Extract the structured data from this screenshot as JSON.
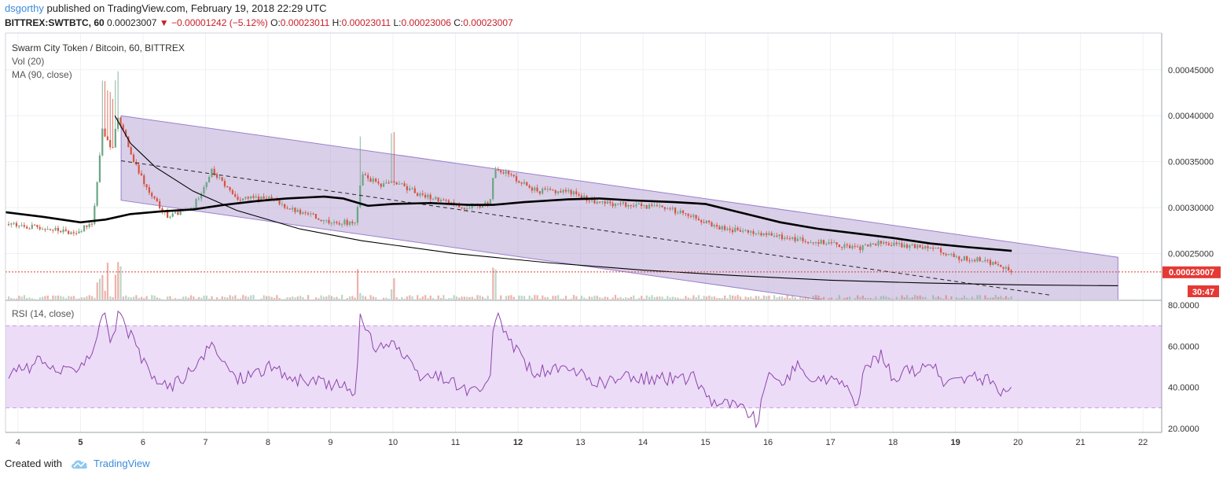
{
  "header": {
    "user": "dsgorthy",
    "published_text": "published on TradingView.com, February 19, 2018 22:29 UTC",
    "symbol": "BITTREX:SWTBTC, 60",
    "last": "0.00023007",
    "change": "−0.00001242 (−5.12%)",
    "open_label": "O:",
    "open": "0.00023011",
    "high_label": "H:",
    "high": "0.00023011",
    "low_label": "L:",
    "low": "0.00023006",
    "close_label": "C:",
    "close": "0.00023007"
  },
  "legend": {
    "title": "Swarm City Token / Bitcoin, 60, BITTREX",
    "vol": "Vol (20)",
    "ma": "MA (90, close)",
    "rsi": "RSI (14, close)"
  },
  "price_badge": "0.00023007",
  "countdown_badge": "30:47",
  "footer": {
    "created": "Created with",
    "brand": "TradingView"
  },
  "colors": {
    "up": "#6ba583",
    "down": "#d75442",
    "channel": "#b9a8d6",
    "rsi_line": "#8e44ad",
    "rsi_band": "#ecdcf7",
    "badge": "#e53935"
  },
  "chart_data": [
    {
      "type": "candlestick",
      "title": "Swarm City Token / Bitcoin, 60, BITTREX",
      "x_ticks": [
        "4",
        "5",
        "6",
        "7",
        "8",
        "9",
        "10",
        "11",
        "12",
        "13",
        "14",
        "15",
        "16",
        "17",
        "18",
        "19",
        "20",
        "21",
        "22"
      ],
      "x_tick_bold": [
        "5",
        "12",
        "19"
      ],
      "y_ticks": [
        "0.00045000",
        "0.00040000",
        "0.00035000",
        "0.00030000",
        "0.00025000"
      ],
      "y_tick_values": [
        0.00045,
        0.0004,
        0.00035,
        0.0003,
        0.00025
      ],
      "ylim": [
        0.0002,
        0.00049
      ],
      "xlim": [
        3.8,
        22.3
      ],
      "close_anchors": [
        {
          "x": 3.85,
          "y": 0.000282
        },
        {
          "x": 4.4,
          "y": 0.000278
        },
        {
          "x": 4.9,
          "y": 0.000272
        },
        {
          "x": 5.2,
          "y": 0.000285
        },
        {
          "x": 5.35,
          "y": 0.000385
        },
        {
          "x": 5.5,
          "y": 0.00036
        },
        {
          "x": 5.6,
          "y": 0.0004
        },
        {
          "x": 5.85,
          "y": 0.00035
        },
        {
          "x": 6.1,
          "y": 0.000315
        },
        {
          "x": 6.4,
          "y": 0.00029
        },
        {
          "x": 6.8,
          "y": 0.0003
        },
        {
          "x": 7.1,
          "y": 0.00034
        },
        {
          "x": 7.5,
          "y": 0.00031
        },
        {
          "x": 8.0,
          "y": 0.00031
        },
        {
          "x": 8.5,
          "y": 0.000295
        },
        {
          "x": 9.0,
          "y": 0.000285
        },
        {
          "x": 9.4,
          "y": 0.000283
        },
        {
          "x": 9.5,
          "y": 0.000335
        },
        {
          "x": 9.8,
          "y": 0.000325
        },
        {
          "x": 10.0,
          "y": 0.00033
        },
        {
          "x": 10.4,
          "y": 0.000315
        },
        {
          "x": 10.8,
          "y": 0.000308
        },
        {
          "x": 11.2,
          "y": 0.000298
        },
        {
          "x": 11.55,
          "y": 0.000305
        },
        {
          "x": 11.62,
          "y": 0.000345
        },
        {
          "x": 12.0,
          "y": 0.00033
        },
        {
          "x": 12.3,
          "y": 0.000318
        },
        {
          "x": 12.8,
          "y": 0.000318
        },
        {
          "x": 13.3,
          "y": 0.000305
        },
        {
          "x": 13.8,
          "y": 0.000303
        },
        {
          "x": 14.3,
          "y": 0.0003
        },
        {
          "x": 14.8,
          "y": 0.000292
        },
        {
          "x": 15.1,
          "y": 0.00028
        },
        {
          "x": 15.5,
          "y": 0.000275
        },
        {
          "x": 16.0,
          "y": 0.00027
        },
        {
          "x": 16.5,
          "y": 0.000265
        },
        {
          "x": 17.0,
          "y": 0.000262
        },
        {
          "x": 17.4,
          "y": 0.000255
        },
        {
          "x": 17.8,
          "y": 0.000262
        },
        {
          "x": 18.2,
          "y": 0.000258
        },
        {
          "x": 18.6,
          "y": 0.000258
        },
        {
          "x": 19.0,
          "y": 0.000245
        },
        {
          "x": 19.4,
          "y": 0.000243
        },
        {
          "x": 19.7,
          "y": 0.000238
        },
        {
          "x": 19.9,
          "y": 0.00023007
        }
      ],
      "ma90": [
        {
          "x": 3.8,
          "y": 0.000295
        },
        {
          "x": 4.4,
          "y": 0.00029
        },
        {
          "x": 5.0,
          "y": 0.000284
        },
        {
          "x": 5.4,
          "y": 0.000287
        },
        {
          "x": 5.8,
          "y": 0.000293
        },
        {
          "x": 6.3,
          "y": 0.000296
        },
        {
          "x": 6.8,
          "y": 0.000298
        },
        {
          "x": 7.3,
          "y": 0.000303
        },
        {
          "x": 7.8,
          "y": 0.000307
        },
        {
          "x": 8.3,
          "y": 0.00031
        },
        {
          "x": 8.9,
          "y": 0.000312
        },
        {
          "x": 9.2,
          "y": 0.00031
        },
        {
          "x": 9.6,
          "y": 0.000302
        },
        {
          "x": 10.0,
          "y": 0.000304
        },
        {
          "x": 10.6,
          "y": 0.000305
        },
        {
          "x": 11.2,
          "y": 0.000303
        },
        {
          "x": 11.6,
          "y": 0.000303
        },
        {
          "x": 12.1,
          "y": 0.000306
        },
        {
          "x": 12.8,
          "y": 0.000309
        },
        {
          "x": 13.3,
          "y": 0.00031
        },
        {
          "x": 13.8,
          "y": 0.000308
        },
        {
          "x": 14.5,
          "y": 0.000306
        },
        {
          "x": 15.0,
          "y": 0.000304
        },
        {
          "x": 15.6,
          "y": 0.000294
        },
        {
          "x": 16.2,
          "y": 0.000284
        },
        {
          "x": 16.8,
          "y": 0.000277
        },
        {
          "x": 17.4,
          "y": 0.000272
        },
        {
          "x": 18.0,
          "y": 0.000267
        },
        {
          "x": 18.6,
          "y": 0.000261
        },
        {
          "x": 19.2,
          "y": 0.000257
        },
        {
          "x": 19.9,
          "y": 0.000253
        }
      ],
      "channel": {
        "top": [
          {
            "x": 5.65,
            "y": 0.0004
          },
          {
            "x": 21.6,
            "y": 0.000246
          }
        ],
        "bottom": [
          {
            "x": 5.65,
            "y": 0.000308
          },
          {
            "x": 21.6,
            "y": 0.000154
          }
        ]
      },
      "dashed_trend": [
        {
          "x": 5.65,
          "y": 0.000351
        },
        {
          "x": 20.5,
          "y": 0.000205
        }
      ],
      "curve_arc": [
        {
          "x": 5.55,
          "y": 0.0004
        },
        {
          "x": 5.8,
          "y": 0.00037
        },
        {
          "x": 6.2,
          "y": 0.000344
        },
        {
          "x": 6.8,
          "y": 0.000318
        },
        {
          "x": 7.5,
          "y": 0.000297
        },
        {
          "x": 8.5,
          "y": 0.000277
        },
        {
          "x": 9.5,
          "y": 0.000264
        },
        {
          "x": 11.0,
          "y": 0.00025
        },
        {
          "x": 12.5,
          "y": 0.00024
        },
        {
          "x": 14.0,
          "y": 0.000232
        },
        {
          "x": 15.5,
          "y": 0.000226
        },
        {
          "x": 17.0,
          "y": 0.000221
        },
        {
          "x": 18.5,
          "y": 0.000218
        },
        {
          "x": 20.0,
          "y": 0.000216
        },
        {
          "x": 21.6,
          "y": 0.000215
        }
      ],
      "last_price": 0.00023007
    },
    {
      "type": "line",
      "title": "RSI (14, close)",
      "y_ticks": [
        "80.0000",
        "60.0000",
        "40.0000",
        "20.0000"
      ],
      "y_tick_values": [
        80,
        60,
        40,
        20
      ],
      "ylim": [
        18,
        82
      ],
      "band": [
        30,
        70
      ],
      "anchors": [
        {
          "x": 3.85,
          "y": 45
        },
        {
          "x": 4.3,
          "y": 52
        },
        {
          "x": 4.8,
          "y": 47
        },
        {
          "x": 5.2,
          "y": 58
        },
        {
          "x": 5.35,
          "y": 78
        },
        {
          "x": 5.5,
          "y": 62
        },
        {
          "x": 5.6,
          "y": 75
        },
        {
          "x": 5.8,
          "y": 65
        },
        {
          "x": 6.1,
          "y": 46
        },
        {
          "x": 6.4,
          "y": 40
        },
        {
          "x": 6.8,
          "y": 48
        },
        {
          "x": 7.1,
          "y": 60
        },
        {
          "x": 7.5,
          "y": 44
        },
        {
          "x": 8.0,
          "y": 50
        },
        {
          "x": 8.5,
          "y": 43
        },
        {
          "x": 9.0,
          "y": 42
        },
        {
          "x": 9.4,
          "y": 38
        },
        {
          "x": 9.47,
          "y": 73
        },
        {
          "x": 9.7,
          "y": 60
        },
        {
          "x": 10.0,
          "y": 62
        },
        {
          "x": 10.4,
          "y": 45
        },
        {
          "x": 10.8,
          "y": 45
        },
        {
          "x": 11.2,
          "y": 38
        },
        {
          "x": 11.55,
          "y": 40
        },
        {
          "x": 11.62,
          "y": 76
        },
        {
          "x": 11.9,
          "y": 62
        },
        {
          "x": 12.2,
          "y": 48
        },
        {
          "x": 12.8,
          "y": 48
        },
        {
          "x": 13.3,
          "y": 42
        },
        {
          "x": 13.8,
          "y": 45
        },
        {
          "x": 14.3,
          "y": 44
        },
        {
          "x": 14.8,
          "y": 45
        },
        {
          "x": 15.1,
          "y": 34
        },
        {
          "x": 15.4,
          "y": 32
        },
        {
          "x": 15.7,
          "y": 28
        },
        {
          "x": 15.85,
          "y": 22
        },
        {
          "x": 15.95,
          "y": 44
        },
        {
          "x": 16.2,
          "y": 43
        },
        {
          "x": 16.5,
          "y": 50
        },
        {
          "x": 16.8,
          "y": 42
        },
        {
          "x": 17.1,
          "y": 46
        },
        {
          "x": 17.4,
          "y": 31
        },
        {
          "x": 17.6,
          "y": 52
        },
        {
          "x": 17.8,
          "y": 56
        },
        {
          "x": 18.0,
          "y": 45
        },
        {
          "x": 18.3,
          "y": 48
        },
        {
          "x": 18.6,
          "y": 52
        },
        {
          "x": 18.8,
          "y": 42
        },
        {
          "x": 19.1,
          "y": 44
        },
        {
          "x": 19.4,
          "y": 45
        },
        {
          "x": 19.6,
          "y": 42
        },
        {
          "x": 19.75,
          "y": 36
        },
        {
          "x": 19.9,
          "y": 43
        }
      ]
    }
  ]
}
